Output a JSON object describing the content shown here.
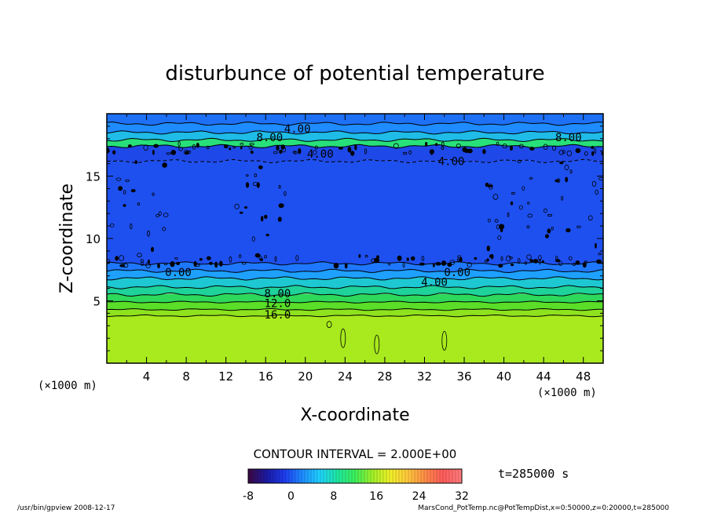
{
  "chart_data": {
    "type": "heatmap",
    "title": "disturbunce of potential temperature",
    "xlabel": "X-coordinate",
    "ylabel": "Z-coordinate",
    "x_unit_label": "(×1000 m)",
    "y_unit_label": "(×1000 m)",
    "xlim": [
      0,
      50
    ],
    "ylim": [
      0,
      20
    ],
    "x_ticks": [
      4,
      8,
      12,
      16,
      20,
      24,
      28,
      32,
      36,
      40,
      44,
      48
    ],
    "y_ticks": [
      5,
      10,
      15
    ],
    "contour_interval_text": "CONTOUR INTERVAL = 2.000E+00",
    "time_text": "t=285000 s",
    "colorbar": {
      "ticks": [
        -8,
        0,
        8,
        16,
        24,
        32
      ],
      "range": [
        -8,
        32
      ],
      "colors": [
        "#3a0a4a",
        "#1a1aa6",
        "#1e3cf0",
        "#1e8cff",
        "#1ed2ff",
        "#1ee6a0",
        "#3cf05a",
        "#a0f028",
        "#f0f028",
        "#ffc83c",
        "#ff8c46",
        "#ff5a5a",
        "#ff7a7a"
      ]
    },
    "bands": [
      {
        "z0": 0,
        "z1": 3.8,
        "value": 18,
        "color": "#a8ea1e"
      },
      {
        "z0": 3.8,
        "z1": 4.3,
        "value": 17,
        "color": "#8ee21e"
      },
      {
        "z0": 4.3,
        "z1": 4.9,
        "value": 15,
        "color": "#5ade28"
      },
      {
        "z0": 4.9,
        "z1": 5.5,
        "value": 13,
        "color": "#2ed85a"
      },
      {
        "z0": 5.5,
        "z1": 6.1,
        "value": 11,
        "color": "#1ed29a"
      },
      {
        "z0": 6.1,
        "z1": 6.8,
        "value": 8,
        "color": "#1ec8d2"
      },
      {
        "z0": 6.8,
        "z1": 7.4,
        "value": 5,
        "color": "#1ea0ff"
      },
      {
        "z0": 7.4,
        "z1": 8.0,
        "value": 2,
        "color": "#1e78ff"
      },
      {
        "z0": 8.0,
        "z1": 16.2,
        "value": -1,
        "color": "#1e50f0"
      },
      {
        "z0": 16.2,
        "z1": 17.4,
        "value": -1,
        "color": "#1e48e8"
      },
      {
        "z0": 17.4,
        "z1": 17.9,
        "value": 10,
        "color": "#28e07a"
      },
      {
        "z0": 17.9,
        "z1": 18.5,
        "value": 6,
        "color": "#1ebce6"
      },
      {
        "z0": 18.5,
        "z1": 19.2,
        "value": 3,
        "color": "#1e8cff"
      },
      {
        "z0": 19.2,
        "z1": 20,
        "value": 2,
        "color": "#1e70f5"
      }
    ],
    "contour_labels": [
      {
        "text": "4.00",
        "x": 19.2,
        "z": 18.8
      },
      {
        "text": "8.00",
        "x": 16.4,
        "z": 18.1
      },
      {
        "text": "8.00",
        "x": 46.5,
        "z": 18.1
      },
      {
        "text": "4.00",
        "x": 21.5,
        "z": 16.8
      },
      {
        "text": "4.00",
        "x": 34.7,
        "z": 16.2
      },
      {
        "text": "0.00",
        "x": 7.2,
        "z": 7.3
      },
      {
        "text": "0.00",
        "x": 35.3,
        "z": 7.3
      },
      {
        "text": "4.00",
        "x": 33.0,
        "z": 6.5
      },
      {
        "text": "8.00",
        "x": 17.2,
        "z": 5.6
      },
      {
        "text": "12.0",
        "x": 17.2,
        "z": 4.8
      },
      {
        "text": "16.0",
        "x": 17.2,
        "z": 3.9
      }
    ],
    "grid": false,
    "legend": "bottom"
  },
  "footer": {
    "left": "/usr/bin/gpview   2008-12-17",
    "right": "MarsCond_PotTemp.nc@PotTempDist,x=0:50000,z=0:20000,t=285000"
  }
}
